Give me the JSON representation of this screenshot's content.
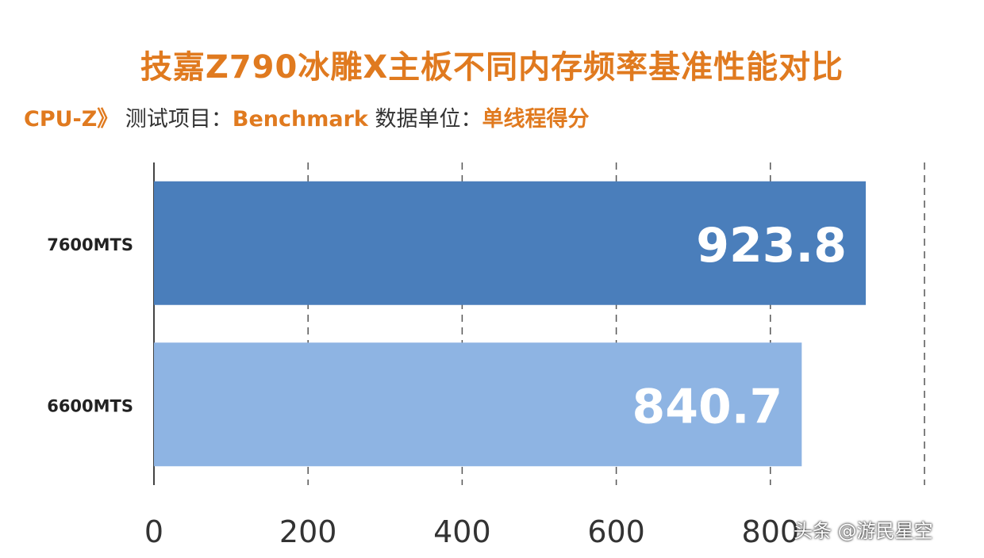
{
  "title": "技嘉Z790冰雕X主板不同内存频率基准性能对比",
  "subtitle": {
    "test_name": "CPU-Z》",
    "test_label": "测试项目：",
    "test_item": "Benchmark",
    "unit_label": "数据单位：",
    "unit": "单线程得分"
  },
  "chart_data": {
    "type": "bar",
    "orientation": "horizontal",
    "categories": [
      "7600MTS",
      "6600MTS"
    ],
    "values": [
      923.8,
      840.7
    ],
    "value_labels": [
      "923.8",
      "840.7"
    ],
    "colors": [
      "#4a7ebb",
      "#8eb4e3"
    ],
    "xlim": [
      0,
      1000
    ],
    "xticks": [
      0,
      200,
      400,
      600,
      800
    ],
    "grid": true
  },
  "watermark": "头条 @游民星空"
}
